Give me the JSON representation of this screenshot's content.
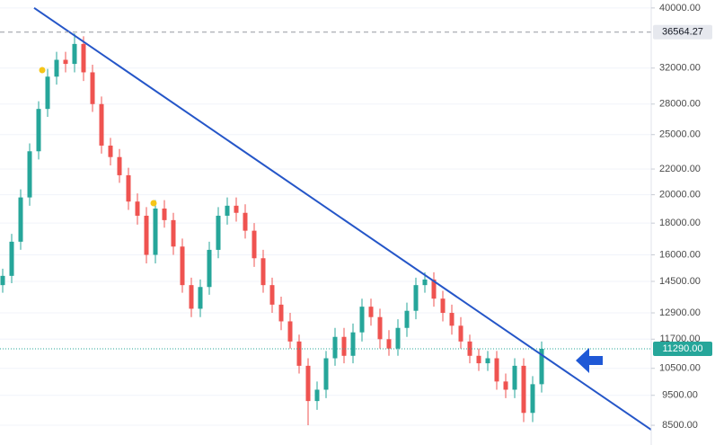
{
  "chart_data": {
    "type": "candlestick",
    "log_scale": true,
    "grid": true,
    "up_color": "#26a69a",
    "down_color": "#ef5350",
    "ylim": [
      7900,
      41200
    ],
    "yticks": [
      {
        "value": 40000,
        "label": "40000.00"
      },
      {
        "value": 32000,
        "label": "32000.00"
      },
      {
        "value": 28000,
        "label": "28000.00"
      },
      {
        "value": 25000,
        "label": "25000.00"
      },
      {
        "value": 22000,
        "label": "22000.00"
      },
      {
        "value": 20000,
        "label": "20000.00"
      },
      {
        "value": 18000,
        "label": "18000.00"
      },
      {
        "value": 16000,
        "label": "16000.00"
      },
      {
        "value": 14500,
        "label": "14500.00"
      },
      {
        "value": 12900,
        "label": "12900.00"
      },
      {
        "value": 11700,
        "label": "11700.00"
      },
      {
        "value": 10500,
        "label": "10500.00"
      },
      {
        "value": 9500,
        "label": "9500.00"
      },
      {
        "value": 8500,
        "label": "8500.00"
      }
    ],
    "price_lines": [
      {
        "value": 36564.27,
        "style": "dashed",
        "color": "#9598a1"
      },
      {
        "value": 11290,
        "label": "11290.00",
        "style": "dotted",
        "color": "#26a69a"
      }
    ],
    "trendline": {
      "x": [
        3.5,
        72.2
      ],
      "y": [
        40000,
        8360
      ],
      "color": "#2556c8"
    },
    "open": [
      14300,
      14800,
      16800,
      19800,
      23500,
      27500,
      31000,
      33000,
      32500,
      35000,
      31500,
      28000,
      24000,
      23000,
      21500,
      19500,
      18500,
      16000,
      19000,
      18200,
      16500,
      14300,
      13100,
      14200,
      16300,
      18500,
      19200,
      18700,
      17500,
      15800,
      14300,
      13300,
      12500,
      11600,
      10600,
      9300,
      9700,
      10900,
      11800,
      11000,
      12000,
      13200,
      12700,
      11700,
      11300,
      12200,
      13000,
      14300,
      14600,
      13600,
      12900,
      12300,
      11600,
      11000,
      10700,
      10900,
      10000,
      9700,
      10600,
      8900,
      9900
    ],
    "high": [
      15200,
      17300,
      20400,
      24200,
      28300,
      31900,
      34000,
      34000,
      36400,
      36000,
      32400,
      28800,
      24700,
      23700,
      22100,
      20100,
      19100,
      19600,
      19600,
      18700,
      17000,
      14700,
      14600,
      16800,
      19100,
      19800,
      19800,
      19300,
      18000,
      16300,
      14700,
      13700,
      12900,
      11900,
      10900,
      10000,
      11200,
      12200,
      12200,
      12400,
      13600,
      13600,
      13100,
      12100,
      12600,
      13400,
      14700,
      15000,
      15000,
      14000,
      13300,
      12700,
      11900,
      11300,
      11200,
      11200,
      10300,
      10900,
      10900,
      10200,
      11600
    ],
    "low": [
      13900,
      14400,
      16300,
      19200,
      22800,
      26700,
      30100,
      31500,
      31500,
      30500,
      27200,
      23300,
      22300,
      20900,
      18900,
      17900,
      15500,
      15500,
      17700,
      16000,
      13900,
      12700,
      12700,
      13800,
      15800,
      17900,
      18100,
      17000,
      15300,
      13900,
      12900,
      12100,
      11300,
      10300,
      8500,
      9000,
      9400,
      10600,
      10700,
      10700,
      11600,
      12300,
      11300,
      11000,
      11000,
      11800,
      12600,
      13900,
      13200,
      12500,
      11900,
      11300,
      10700,
      10400,
      10400,
      9700,
      9400,
      9400,
      8600,
      8600,
      9600
    ],
    "close": [
      14800,
      16800,
      19800,
      23500,
      27500,
      31000,
      33000,
      32500,
      35000,
      31500,
      28000,
      24000,
      23000,
      21500,
      19500,
      18500,
      16000,
      19000,
      18200,
      16500,
      14300,
      13100,
      14200,
      16300,
      18500,
      19200,
      18700,
      17500,
      15800,
      14300,
      13300,
      12500,
      11600,
      10600,
      9300,
      9700,
      10900,
      11800,
      11000,
      12000,
      13200,
      12700,
      11700,
      11300,
      12200,
      13000,
      14300,
      14600,
      13600,
      12900,
      12300,
      11600,
      11000,
      10700,
      10900,
      10000,
      9700,
      10600,
      8900,
      9900,
      11290
    ]
  }
}
